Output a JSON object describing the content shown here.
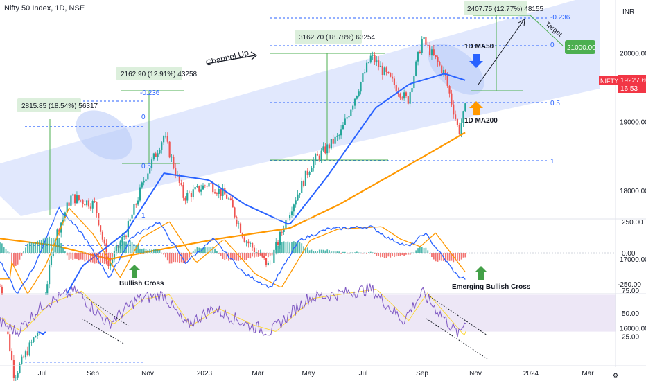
{
  "header": {
    "symbol_title": "Nifty 50 Index, 1D, NSE"
  },
  "axis": {
    "currency": "INR",
    "price_ticks": [
      "21000.00",
      "20000.00",
      "19000.00",
      "18000.00",
      "17000.00",
      "16000.00"
    ],
    "macd_ticks": [
      "250.00",
      "0.00",
      "-250.00"
    ],
    "rsi_ticks": [
      "75.00",
      "50.00",
      "25.00"
    ],
    "time_ticks": [
      "Jul",
      "Sep",
      "Nov",
      "2023",
      "Mar",
      "May",
      "Jul",
      "Sep",
      "Nov",
      "2024",
      "Mar"
    ]
  },
  "badges": {
    "ticker": "NIFTY",
    "last_price": "19227.60",
    "countdown": "16:53",
    "target_price": "21000.00",
    "target_color": "#4caf50",
    "ticker_color": "#f23645"
  },
  "colors": {
    "up": "#26a69a",
    "down": "#ef5350",
    "ma50": "#2962ff",
    "ma200": "#ff9800",
    "channel": "#c9d6fb",
    "fib": "#2962ff",
    "measure_box": "#dcefdc",
    "measure_line": "#4caf50",
    "macd_line": "#2962ff",
    "signal_line": "#ff9800",
    "rsi_line": "#7e57c2",
    "rsi_band": "#ede7f6",
    "rsi_ma": "#fdd835"
  },
  "annotations": {
    "channel_up": "Channel Up",
    "ma50_label": "1D MA50",
    "ma200_label": "1D MA200",
    "bullish_cross": "Bullish Cross",
    "emerging_cross": "Emerging Bullish Cross",
    "target": "Target"
  },
  "measures": [
    {
      "text": "2815.85 (18.54%) 56317"
    },
    {
      "text": "2162.90 (12.91%) 43258"
    },
    {
      "text": "3162.70 (18.78%) 63254"
    },
    {
      "text": "2407.75 (12.77%) 48155"
    }
  ],
  "fib_sets": [
    {
      "levels": [
        "-0.236",
        "0",
        "0.5",
        "1"
      ]
    },
    {
      "levels": [
        "-0.236",
        "0",
        "0.5",
        "1"
      ]
    }
  ],
  "chart_data": [
    {
      "type": "candlestick",
      "title": "Nifty 50 Index, 1D, NSE",
      "ylim": [
        15300,
        21500
      ],
      "x_range": [
        "2022-06-01",
        "2024-03-31"
      ],
      "key_points": [
        {
          "date": "2022-06-01",
          "close": 16600
        },
        {
          "date": "2022-06-17",
          "close": 15300
        },
        {
          "date": "2022-07-15",
          "close": 16000
        },
        {
          "date": "2022-08-01",
          "close": 17300
        },
        {
          "date": "2022-08-19",
          "close": 17900
        },
        {
          "date": "2022-09-15",
          "close": 17800
        },
        {
          "date": "2022-09-30",
          "close": 16900
        },
        {
          "date": "2022-10-20",
          "close": 17400
        },
        {
          "date": "2022-11-10",
          "close": 18200
        },
        {
          "date": "2022-12-01",
          "close": 18800
        },
        {
          "date": "2022-12-23",
          "close": 17900
        },
        {
          "date": "2023-01-20",
          "close": 18100
        },
        {
          "date": "2023-02-10",
          "close": 17900
        },
        {
          "date": "2023-03-01",
          "close": 17300
        },
        {
          "date": "2023-03-28",
          "close": 16900
        },
        {
          "date": "2023-04-20",
          "close": 17700
        },
        {
          "date": "2023-05-15",
          "close": 18400
        },
        {
          "date": "2023-06-15",
          "close": 18800
        },
        {
          "date": "2023-07-20",
          "close": 19950
        },
        {
          "date": "2023-08-30",
          "close": 19300
        },
        {
          "date": "2023-09-15",
          "close": 20200
        },
        {
          "date": "2023-10-10",
          "close": 19700
        },
        {
          "date": "2023-10-26",
          "close": 18850
        },
        {
          "date": "2023-11-03",
          "close": 19230
        }
      ],
      "ma50_points": [
        {
          "date": "2022-06-01",
          "value": 16300
        },
        {
          "date": "2022-07-20",
          "value": 15900
        },
        {
          "date": "2022-09-01",
          "value": 16900
        },
        {
          "date": "2022-10-20",
          "value": 17400
        },
        {
          "date": "2022-12-01",
          "value": 18250
        },
        {
          "date": "2023-01-20",
          "value": 18150
        },
        {
          "date": "2023-03-01",
          "value": 17800
        },
        {
          "date": "2023-04-20",
          "value": 17500
        },
        {
          "date": "2023-06-01",
          "value": 18200
        },
        {
          "date": "2023-07-25",
          "value": 19200
        },
        {
          "date": "2023-09-01",
          "value": 19550
        },
        {
          "date": "2023-10-10",
          "value": 19700
        },
        {
          "date": "2023-11-03",
          "value": 19600
        }
      ],
      "ma200_points": [
        {
          "date": "2022-06-01",
          "value": 17300
        },
        {
          "date": "2022-08-01",
          "value": 17200
        },
        {
          "date": "2022-10-01",
          "value": 17000
        },
        {
          "date": "2022-12-01",
          "value": 17150
        },
        {
          "date": "2023-02-01",
          "value": 17300
        },
        {
          "date": "2023-04-20",
          "value": 17450
        },
        {
          "date": "2023-06-15",
          "value": 17800
        },
        {
          "date": "2023-08-15",
          "value": 18250
        },
        {
          "date": "2023-10-01",
          "value": 18600
        },
        {
          "date": "2023-11-03",
          "value": 18850
        }
      ],
      "last_price": 19227.6,
      "target_price": 21000,
      "legend": "none",
      "grid": false
    },
    {
      "type": "macd",
      "ylim": [
        -450,
        450
      ],
      "macd_points": [
        {
          "date": "2022-06-01",
          "value": -60
        },
        {
          "date": "2022-06-20",
          "value": -330
        },
        {
          "date": "2022-07-10",
          "value": -100
        },
        {
          "date": "2022-08-05",
          "value": 360
        },
        {
          "date": "2022-09-01",
          "value": 150
        },
        {
          "date": "2022-10-01",
          "value": -200
        },
        {
          "date": "2022-10-25",
          "value": 120
        },
        {
          "date": "2022-11-25",
          "value": 250
        },
        {
          "date": "2022-12-25",
          "value": -80
        },
        {
          "date": "2023-01-25",
          "value": 110
        },
        {
          "date": "2023-03-01",
          "value": -170
        },
        {
          "date": "2023-03-30",
          "value": -280
        },
        {
          "date": "2023-05-01",
          "value": 100
        },
        {
          "date": "2023-06-01",
          "value": 190
        },
        {
          "date": "2023-07-20",
          "value": 210
        },
        {
          "date": "2023-08-10",
          "value": 110
        },
        {
          "date": "2023-09-01",
          "value": 50
        },
        {
          "date": "2023-09-18",
          "value": 160
        },
        {
          "date": "2023-10-25",
          "value": -190
        },
        {
          "date": "2023-11-03",
          "value": -210
        }
      ]
    },
    {
      "type": "rsi",
      "ylim": [
        0,
        100
      ],
      "band": [
        30,
        70
      ],
      "rsi_points": [
        {
          "date": "2022-06-01",
          "value": 40
        },
        {
          "date": "2022-06-20",
          "value": 30
        },
        {
          "date": "2022-07-20",
          "value": 60
        },
        {
          "date": "2022-08-25",
          "value": 74
        },
        {
          "date": "2022-09-30",
          "value": 38
        },
        {
          "date": "2022-11-01",
          "value": 65
        },
        {
          "date": "2022-12-01",
          "value": 70
        },
        {
          "date": "2022-12-25",
          "value": 36
        },
        {
          "date": "2023-01-25",
          "value": 55
        },
        {
          "date": "2023-03-05",
          "value": 37
        },
        {
          "date": "2023-03-30",
          "value": 30
        },
        {
          "date": "2023-05-10",
          "value": 66
        },
        {
          "date": "2023-07-20",
          "value": 76
        },
        {
          "date": "2023-08-25",
          "value": 42
        },
        {
          "date": "2023-09-15",
          "value": 72
        },
        {
          "date": "2023-10-26",
          "value": 26
        },
        {
          "date": "2023-11-03",
          "value": 44
        }
      ]
    }
  ]
}
